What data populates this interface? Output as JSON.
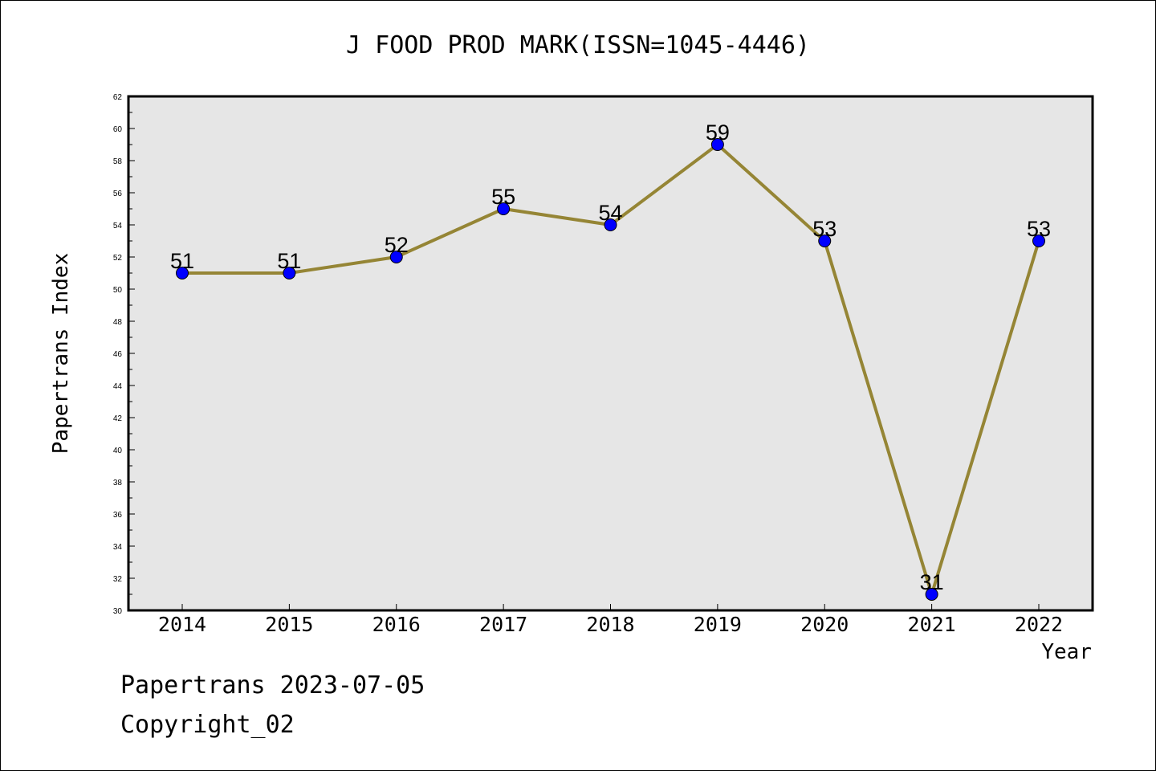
{
  "chart_data": {
    "type": "line",
    "title": "J FOOD PROD MARK(ISSN=1045-4446)",
    "xlabel": "Year",
    "ylabel": "Papertrans Index",
    "categories": [
      "2014",
      "2015",
      "2016",
      "2017",
      "2018",
      "2019",
      "2020",
      "2021",
      "2022"
    ],
    "series": [
      {
        "values": [
          51,
          51,
          52,
          55,
          54,
          59,
          53,
          31,
          53
        ]
      }
    ],
    "ylim": [
      30,
      62
    ],
    "yticks": [
      30,
      32,
      34,
      36,
      38,
      40,
      42,
      44,
      46,
      48,
      50,
      52,
      54,
      56,
      58,
      60,
      62
    ],
    "grid": false,
    "legend": "none",
    "colors": {
      "line": "#958535",
      "marker": "#0000ff",
      "plot_bg": "#e6e6e6"
    }
  },
  "footer": {
    "date_line": "Papertrans 2023-07-05",
    "copyright": "Copyright_02"
  }
}
